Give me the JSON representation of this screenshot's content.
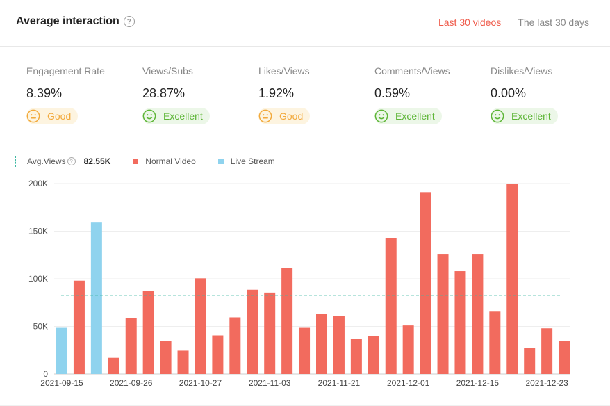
{
  "header": {
    "title": "Average interaction",
    "tabs": [
      {
        "label": "Last 30 videos",
        "active": true
      },
      {
        "label": "The last 30 days",
        "active": false
      }
    ]
  },
  "metrics": [
    {
      "label": "Engagement Rate",
      "value": "8.39%",
      "rating": "Good"
    },
    {
      "label": "Views/Subs",
      "value": "28.87%",
      "rating": "Excellent"
    },
    {
      "label": "Likes/Views",
      "value": "1.92%",
      "rating": "Good"
    },
    {
      "label": "Comments/Views",
      "value": "0.59%",
      "rating": "Excellent"
    },
    {
      "label": "Dislikes/Views",
      "value": "0.00%",
      "rating": "Excellent"
    }
  ],
  "colors": {
    "accent": "#ef5a4a",
    "normal_video": "#f26b5e",
    "live_stream": "#8fd3ee",
    "avg_line": "#3fb8a3",
    "good": "#f2a93b",
    "excellent": "#5cb535"
  },
  "legend": {
    "avg_label": "Avg.Views",
    "avg_value": "82.55K",
    "normal_label": "Normal Video",
    "live_label": "Live Stream"
  },
  "chart_data": {
    "type": "bar",
    "ylim": [
      0,
      200000
    ],
    "yticks": [
      "0",
      "50K",
      "100K",
      "150K",
      "200K"
    ],
    "ytick_values": [
      0,
      50000,
      100000,
      150000,
      200000
    ],
    "average": 82550,
    "xtick_labels": [
      "2021-09-15",
      "2021-09-26",
      "2021-10-27",
      "2021-11-03",
      "2021-11-21",
      "2021-12-01",
      "2021-12-15",
      "2021-12-23"
    ],
    "xtick_indices": [
      0,
      4,
      8,
      12,
      16,
      20,
      24,
      28
    ],
    "series": [
      {
        "name": "Normal Video",
        "values": [
          0,
          98000,
          0,
          17000,
          58500,
          87000,
          34500,
          24500,
          100500,
          40500,
          59500,
          88500,
          85500,
          111000,
          48500,
          63000,
          61000,
          36500,
          40000,
          142500,
          51000,
          191000,
          125500,
          108000,
          125500,
          65500,
          199500,
          27000,
          48000,
          35000
        ]
      },
      {
        "name": "Live Stream",
        "values": [
          48500,
          0,
          159000,
          0,
          0,
          0,
          0,
          0,
          0,
          0,
          0,
          0,
          0,
          0,
          0,
          0,
          0,
          0,
          0,
          0,
          0,
          0,
          0,
          0,
          0,
          0,
          0,
          0,
          0,
          0
        ]
      }
    ]
  }
}
